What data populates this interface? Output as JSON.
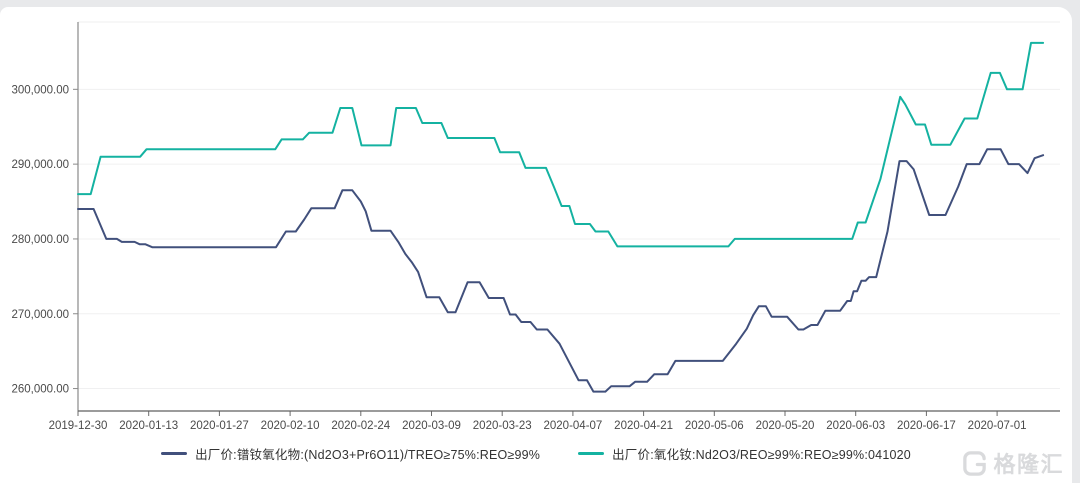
{
  "page": {
    "background_color": "#e8e9eb",
    "card_color": "#ffffff"
  },
  "chart_data": {
    "type": "line",
    "title": "",
    "xlabel": "",
    "ylabel": "",
    "grid": true,
    "legend_position": "bottom",
    "ylim": [
      257000,
      309000
    ],
    "y_ticks": [
      {
        "value": 300000,
        "label": "300,000.00"
      },
      {
        "value": 290000,
        "label": "290,000.00"
      },
      {
        "value": 280000,
        "label": "280,000.00"
      },
      {
        "value": 270000,
        "label": "270,000.00"
      },
      {
        "value": 260000,
        "label": "260,000.00"
      }
    ],
    "x_tick_labels": [
      "2019-12-30",
      "2020-01-13",
      "2020-01-27",
      "2020-02-10",
      "2020-02-24",
      "2020-03-09",
      "2020-03-23",
      "2020-04-07",
      "2020-04-21",
      "2020-05-06",
      "2020-05-20",
      "2020-06-03",
      "2020-06-17",
      "2020-07-01"
    ],
    "x_unit_note": "point x values are in tick units: x = i aligns with x_tick_labels[i], spacing about two weeks",
    "series": [
      {
        "name": "出厂价:镨钕氧化物:(Nd2O3+Pr6O11)/TREO≥75%:REO≥99%",
        "color": "#41507c",
        "points": [
          [
            0,
            284000
          ],
          [
            0.22,
            284000
          ],
          [
            0.4,
            280000
          ],
          [
            0.55,
            280000
          ],
          [
            0.62,
            279600
          ],
          [
            0.8,
            279600
          ],
          [
            0.87,
            279300
          ],
          [
            0.95,
            279300
          ],
          [
            1.05,
            278900
          ],
          [
            2.8,
            278900
          ],
          [
            2.94,
            281000
          ],
          [
            3.08,
            281000
          ],
          [
            3.2,
            282600
          ],
          [
            3.3,
            284100
          ],
          [
            3.63,
            284100
          ],
          [
            3.74,
            286500
          ],
          [
            3.88,
            286500
          ],
          [
            4.0,
            285000
          ],
          [
            4.07,
            283700
          ],
          [
            4.15,
            281100
          ],
          [
            4.42,
            281100
          ],
          [
            4.53,
            279600
          ],
          [
            4.63,
            278000
          ],
          [
            4.72,
            276900
          ],
          [
            4.81,
            275600
          ],
          [
            4.93,
            272200
          ],
          [
            5.11,
            272200
          ],
          [
            5.23,
            270200
          ],
          [
            5.34,
            270200
          ],
          [
            5.51,
            274200
          ],
          [
            5.68,
            274200
          ],
          [
            5.81,
            272100
          ],
          [
            6.02,
            272100
          ],
          [
            6.11,
            269900
          ],
          [
            6.19,
            269900
          ],
          [
            6.27,
            268900
          ],
          [
            6.4,
            268900
          ],
          [
            6.49,
            267900
          ],
          [
            6.64,
            267900
          ],
          [
            6.81,
            266000
          ],
          [
            7.08,
            261100
          ],
          [
            7.2,
            261100
          ],
          [
            7.29,
            259600
          ],
          [
            7.46,
            259600
          ],
          [
            7.54,
            260300
          ],
          [
            7.8,
            260300
          ],
          [
            7.88,
            260900
          ],
          [
            8.05,
            260900
          ],
          [
            8.15,
            261900
          ],
          [
            8.34,
            261900
          ],
          [
            8.45,
            263700
          ],
          [
            9.12,
            263700
          ],
          [
            9.31,
            266000
          ],
          [
            9.46,
            268000
          ],
          [
            9.55,
            269800
          ],
          [
            9.63,
            271000
          ],
          [
            9.73,
            271000
          ],
          [
            9.81,
            269600
          ],
          [
            10.03,
            269600
          ],
          [
            10.19,
            267900
          ],
          [
            10.26,
            267900
          ],
          [
            10.37,
            268500
          ],
          [
            10.46,
            268500
          ],
          [
            10.57,
            270400
          ],
          [
            10.78,
            270400
          ],
          [
            10.88,
            271700
          ],
          [
            10.93,
            271700
          ],
          [
            10.97,
            273000
          ],
          [
            11.02,
            273000
          ],
          [
            11.08,
            274400
          ],
          [
            11.14,
            274400
          ],
          [
            11.19,
            274900
          ],
          [
            11.29,
            274900
          ],
          [
            11.45,
            281000
          ],
          [
            11.62,
            290400
          ],
          [
            11.72,
            290400
          ],
          [
            11.82,
            289300
          ],
          [
            12.04,
            283200
          ],
          [
            12.27,
            283200
          ],
          [
            12.45,
            287000
          ],
          [
            12.57,
            290000
          ],
          [
            12.75,
            290000
          ],
          [
            12.86,
            292000
          ],
          [
            13.05,
            292000
          ],
          [
            13.16,
            290000
          ],
          [
            13.31,
            290000
          ],
          [
            13.43,
            288800
          ],
          [
            13.53,
            290800
          ],
          [
            13.65,
            291200
          ]
        ]
      },
      {
        "name": "出厂价:氧化钕:Nd2O3/REO≥99%:REO≥99%:041020",
        "color": "#14b2a1",
        "points": [
          [
            0,
            286000
          ],
          [
            0.18,
            286000
          ],
          [
            0.32,
            291000
          ],
          [
            0.88,
            291000
          ],
          [
            0.97,
            292000
          ],
          [
            2.79,
            292000
          ],
          [
            2.88,
            293300
          ],
          [
            3.18,
            293300
          ],
          [
            3.27,
            294200
          ],
          [
            3.6,
            294200
          ],
          [
            3.71,
            297500
          ],
          [
            3.88,
            297500
          ],
          [
            4.01,
            292500
          ],
          [
            4.42,
            292500
          ],
          [
            4.5,
            297500
          ],
          [
            4.78,
            297500
          ],
          [
            4.87,
            295500
          ],
          [
            5.14,
            295500
          ],
          [
            5.23,
            293500
          ],
          [
            5.89,
            293500
          ],
          [
            5.97,
            291600
          ],
          [
            6.24,
            291600
          ],
          [
            6.33,
            289500
          ],
          [
            6.62,
            289500
          ],
          [
            6.73,
            287000
          ],
          [
            6.84,
            284400
          ],
          [
            6.95,
            284400
          ],
          [
            7.03,
            282000
          ],
          [
            7.24,
            282000
          ],
          [
            7.32,
            281000
          ],
          [
            7.5,
            281000
          ],
          [
            7.63,
            279000
          ],
          [
            9.2,
            279000
          ],
          [
            9.29,
            280000
          ],
          [
            10.95,
            280000
          ],
          [
            11.03,
            282200
          ],
          [
            11.14,
            282200
          ],
          [
            11.35,
            288000
          ],
          [
            11.63,
            299000
          ],
          [
            11.7,
            298000
          ],
          [
            11.85,
            295300
          ],
          [
            11.98,
            295300
          ],
          [
            12.07,
            292600
          ],
          [
            12.34,
            292600
          ],
          [
            12.54,
            296100
          ],
          [
            12.72,
            296100
          ],
          [
            12.91,
            302200
          ],
          [
            13.04,
            302200
          ],
          [
            13.14,
            300000
          ],
          [
            13.36,
            300000
          ],
          [
            13.48,
            306200
          ],
          [
            13.65,
            306200
          ]
        ]
      }
    ]
  },
  "watermark": {
    "text": "格隆汇",
    "icon": "gelonghui-logo"
  }
}
